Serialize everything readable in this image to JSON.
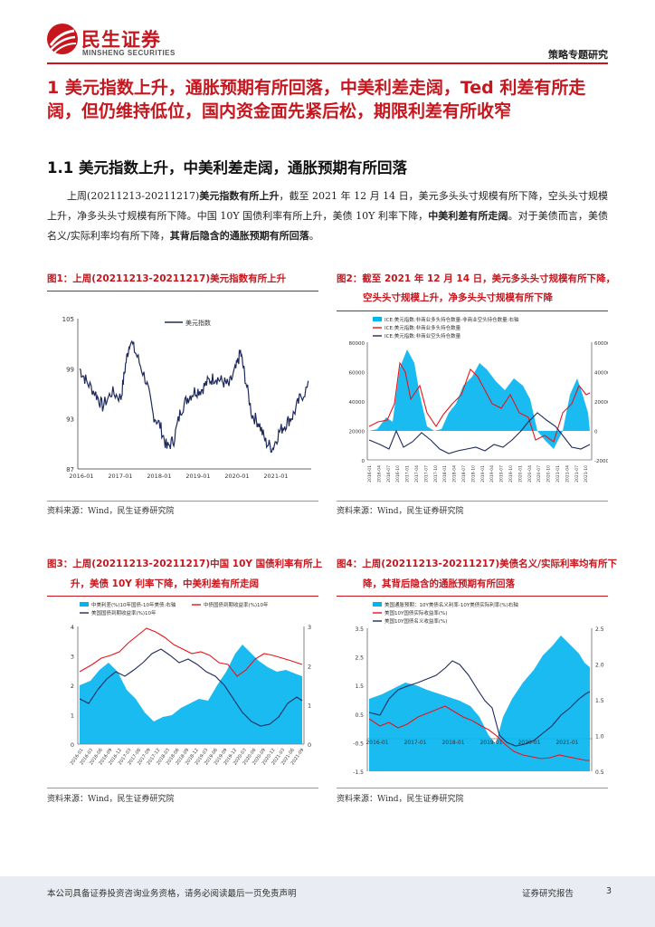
{
  "header": {
    "logo_cn": "民生证券",
    "logo_en": "MINSHENG SECURITIES",
    "report_tag": "策略专题研究"
  },
  "section": {
    "h1": "1  美元指数上升，通胀预期有所回落，中美利差走阔，Ted 利差有所走阔，但仍维持低位，国内资金面先紧后松，期限利差有所收窄",
    "h2": "1.1  美元指数上升，中美利差走阔，通胀预期有所回落",
    "para": {
      "p1": "上周(20211213-20211217)",
      "b1": "美元指数有所上升",
      "p2": "，截至 2021 年 12 月 14 日，美元多头头寸规模有所下降，空头头寸规模上升，净多头头寸规模有所下降。中国 10Y 国债利率有所上升，美债 10Y 利率下降，",
      "b2": "中美利差有所走阔",
      "p3": "。对于美债而言，美债名义/实际利率均有所下降，",
      "b3": "其背后隐含的通胀预期有所回落",
      "p4": "。"
    }
  },
  "figures": {
    "fig1": {
      "title": "图1：上周(20211213-20211217)美元指数有所上升",
      "source": "资料来源：Wind，民生证券研究院"
    },
    "fig2": {
      "title_l1": "图2：截至 2021 年 12 月 14 日，美元多头头寸规模有所下降，",
      "title_l2": "空头头寸规模上升，净多头头寸规模有所下降",
      "source": "资料来源：Wind，民生证券研究院"
    },
    "fig3": {
      "title_l1": "图3：上周(20211213-20211217)中国 10Y 国债利率有所上",
      "title_l2": "升，美债 10Y 利率下降，中美利差有所走阔",
      "source": "资料来源：Wind，民生证券研究院"
    },
    "fig4": {
      "title_l1": "图4：上周(20211213-20211217)美债名义/实际利率均有所下",
      "title_l2": "降，其背后隐含的通胀预期有所回落",
      "source": "资料来源：Wind，民生证券研究院"
    }
  },
  "chart_data": [
    {
      "type": "line",
      "series": [
        {
          "name": "美元指数"
        }
      ],
      "x_ticks": [
        "2016-01",
        "2017-01",
        "2018-01",
        "2019-01",
        "2020-01",
        "2021-01"
      ],
      "y_ticks": [
        "87",
        "93",
        "99",
        "105"
      ],
      "ylim": [
        87,
        105
      ],
      "path": [
        [
          0,
          99
        ],
        [
          0.03,
          97.5
        ],
        [
          0.07,
          96
        ],
        [
          0.1,
          94.5
        ],
        [
          0.14,
          96.2
        ],
        [
          0.18,
          95.5
        ],
        [
          0.2,
          99.5
        ],
        [
          0.22,
          102.5
        ],
        [
          0.25,
          100.5
        ],
        [
          0.29,
          97.5
        ],
        [
          0.32,
          93.5
        ],
        [
          0.35,
          92.2
        ],
        [
          0.38,
          89.5
        ],
        [
          0.41,
          90.5
        ],
        [
          0.44,
          94
        ],
        [
          0.47,
          95.5
        ],
        [
          0.5,
          96.3
        ],
        [
          0.53,
          96.5
        ],
        [
          0.56,
          97.5
        ],
        [
          0.59,
          98
        ],
        [
          0.62,
          97.5
        ],
        [
          0.65,
          97
        ],
        [
          0.68,
          99
        ],
        [
          0.7,
          101
        ],
        [
          0.72,
          98
        ],
        [
          0.75,
          93.5
        ],
        [
          0.78,
          92.5
        ],
        [
          0.81,
          90.2
        ],
        [
          0.84,
          89.5
        ],
        [
          0.87,
          91.5
        ],
        [
          0.9,
          92.5
        ],
        [
          0.93,
          93.5
        ],
        [
          0.96,
          95.5
        ],
        [
          1,
          97
        ]
      ]
    },
    {
      "type": "area",
      "legend": [
        "ICE:美元指数:非商业多头持仓数量-非商业空头持仓数量:右轴",
        "ICE:美元指数:非商业多头持仓数量",
        "ICE:美元指数:非商业空头持仓数量"
      ],
      "y_ticks_left": [
        "0",
        "20000",
        "40000",
        "60000",
        "80000"
      ],
      "y_ticks_right": [
        "-20000",
        "0",
        "20000",
        "40000",
        "60000"
      ],
      "x_ticks": [
        "2016-01",
        "2016-04",
        "2016-07",
        "2016-10",
        "2017-01",
        "2017-04",
        "2017-07",
        "2017-10",
        "2018-01",
        "2018-04",
        "2018-07",
        "2018-10",
        "2019-01",
        "2019-04",
        "2019-07",
        "2019-10",
        "2020-01",
        "2020-04",
        "2020-07",
        "2020-10",
        "2021-01",
        "2021-04",
        "2021-07",
        "2021-10"
      ]
    },
    {
      "type": "area",
      "legend": [
        "中美利差(%)10年国债-10年美债:右轴",
        "中债国债到期收益率(%)10年",
        "美国国债到期收益率(%)10年"
      ],
      "y_ticks_left": [
        "0",
        "1",
        "2",
        "3",
        "4"
      ],
      "y_ticks_right": [
        "0",
        "1",
        "2",
        "3"
      ],
      "x_ticks": [
        "2016-01",
        "2016-03",
        "2016-06",
        "2016-09",
        "2016-12",
        "2017-03",
        "2017-06",
        "2017-09",
        "2017-12",
        "2018-03",
        "2018-06",
        "2018-09",
        "2018-12",
        "2019-03",
        "2019-06",
        "2019-09",
        "2019-12",
        "2020-03",
        "2020-06",
        "2020-09",
        "2020-12",
        "2021-03",
        "2021-06",
        "2021-09"
      ]
    },
    {
      "type": "area",
      "legend": [
        "美国通胀预期：10Y美债名义利率-10Y美债实际利率(%)右轴",
        "美国10Y国债实际收益率(%)",
        "美国10Y国债名义收益率(%)"
      ],
      "y_ticks_left": [
        "-1.5",
        "-0.5",
        "0.5",
        "1.5",
        "2.5",
        "3.5"
      ],
      "y_ticks_right": [
        "0.5",
        "1.0",
        "1.5",
        "2.0",
        "2.5"
      ],
      "x_ticks": [
        "2016-01",
        "2017-01",
        "2018-01",
        "2019-01",
        "2020-01",
        "2021-01"
      ]
    }
  ],
  "footer": {
    "disclaimer": "本公司具备证券投资咨询业务资格，请务必阅读最后一页免责声明",
    "report_type": "证券研究报告",
    "page": "3"
  },
  "colors": {
    "brand_red": "#c7161e",
    "navy": "#1f2a5c",
    "cyan": "#00b4f0",
    "red_line": "#e8141b"
  }
}
